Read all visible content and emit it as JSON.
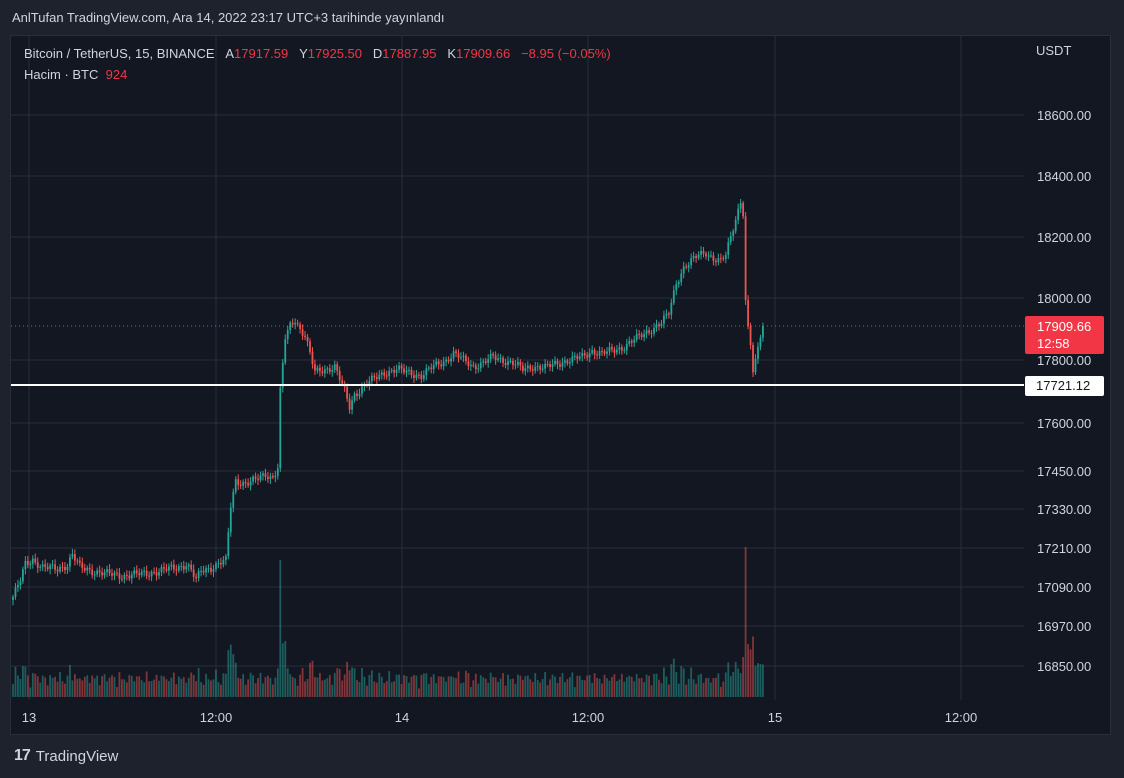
{
  "publish_line": "AnlTufan TradingView.com, Ara 14, 2022 23:17 UTC+3 tarihinde yayınlandı",
  "legend": {
    "symbol": "Bitcoin / TetherUS, 15, BINANCE",
    "open_label": "A",
    "open": "17917.59",
    "high_label": "Y",
    "high": "17925.50",
    "low_label": "D",
    "low": "17887.95",
    "close_label": "K",
    "close": "17909.66",
    "change": "−8.95 (−0.05%)",
    "volume_label": "Hacim · BTC",
    "volume": "924"
  },
  "currency": "USDT",
  "last_price_tag": {
    "price": "17909.66",
    "countdown": "12:58"
  },
  "level_tag": "17721.12",
  "footer_brand": "TradingView",
  "colors": {
    "up": "#26a69a",
    "down": "#ef5350",
    "bg": "#131722",
    "grid": "#2a2e39",
    "tag": "#f23645"
  },
  "chart_data": {
    "type": "candlestick",
    "title": "Bitcoin / TetherUS, 15, BINANCE",
    "y_ticks": [
      "18600.00",
      "18400.00",
      "18200.00",
      "18000.00",
      "17800.00",
      "17600.00",
      "17450.00",
      "17330.00",
      "17210.00",
      "17090.00",
      "16970.00",
      "16850.00"
    ],
    "x_ticks": [
      "13",
      "12:00",
      "14",
      "12:00",
      "15",
      "12:00"
    ],
    "horizontal_line": 17721.12,
    "last_price": 17909.66,
    "price_path": [
      [
        0,
        17060
      ],
      [
        3,
        17110
      ],
      [
        5,
        17160
      ],
      [
        8,
        17175
      ],
      [
        12,
        17150
      ],
      [
        18,
        17145
      ],
      [
        22,
        17160
      ],
      [
        24,
        17190
      ],
      [
        27,
        17150
      ],
      [
        32,
        17140
      ],
      [
        38,
        17130
      ],
      [
        45,
        17125
      ],
      [
        52,
        17130
      ],
      [
        60,
        17140
      ],
      [
        66,
        17150
      ],
      [
        70,
        17160
      ],
      [
        72,
        17140
      ],
      [
        74,
        17110
      ],
      [
        76,
        17140
      ],
      [
        80,
        17150
      ],
      [
        84,
        17165
      ],
      [
        86,
        17170
      ],
      [
        88,
        17340
      ],
      [
        90,
        17420
      ],
      [
        94,
        17410
      ],
      [
        98,
        17420
      ],
      [
        102,
        17440
      ],
      [
        105,
        17430
      ],
      [
        107,
        17460
      ],
      [
        108,
        17700
      ],
      [
        110,
        17870
      ],
      [
        112,
        17910
      ],
      [
        114,
        17930
      ],
      [
        116,
        17900
      ],
      [
        118,
        17880
      ],
      [
        120,
        17820
      ],
      [
        122,
        17760
      ],
      [
        126,
        17770
      ],
      [
        130,
        17780
      ],
      [
        132,
        17740
      ],
      [
        134,
        17700
      ],
      [
        136,
        17650
      ],
      [
        138,
        17690
      ],
      [
        142,
        17720
      ],
      [
        146,
        17740
      ],
      [
        150,
        17760
      ],
      [
        155,
        17770
      ],
      [
        160,
        17760
      ],
      [
        165,
        17750
      ],
      [
        170,
        17780
      ],
      [
        175,
        17800
      ],
      [
        178,
        17820
      ],
      [
        182,
        17800
      ],
      [
        186,
        17780
      ],
      [
        190,
        17790
      ],
      [
        194,
        17810
      ],
      [
        198,
        17800
      ],
      [
        202,
        17790
      ],
      [
        206,
        17770
      ],
      [
        210,
        17780
      ],
      [
        215,
        17775
      ],
      [
        220,
        17790
      ],
      [
        225,
        17800
      ],
      [
        230,
        17810
      ],
      [
        234,
        17830
      ],
      [
        238,
        17820
      ],
      [
        242,
        17830
      ],
      [
        246,
        17840
      ],
      [
        250,
        17860
      ],
      [
        254,
        17880
      ],
      [
        258,
        17900
      ],
      [
        262,
        17920
      ],
      [
        265,
        17950
      ],
      [
        268,
        18050
      ],
      [
        271,
        18100
      ],
      [
        274,
        18120
      ],
      [
        277,
        18140
      ],
      [
        280,
        18150
      ],
      [
        283,
        18130
      ],
      [
        286,
        18120
      ],
      [
        288,
        18140
      ],
      [
        290,
        18200
      ],
      [
        292,
        18260
      ],
      [
        294,
        18320
      ],
      [
        295,
        18280
      ],
      [
        296,
        17990
      ],
      [
        297,
        17900
      ],
      [
        298,
        17850
      ],
      [
        299,
        17760
      ],
      [
        300,
        17790
      ],
      [
        302,
        17880
      ],
      [
        303,
        17909.66
      ]
    ],
    "volume_max_btc_label": "924"
  }
}
